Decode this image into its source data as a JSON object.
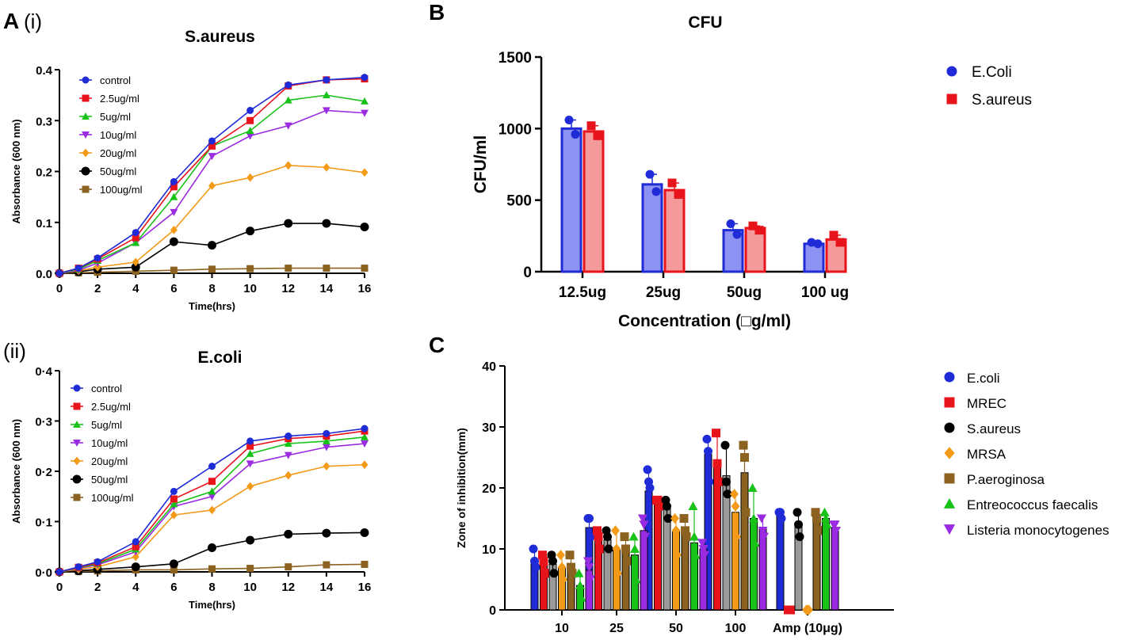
{
  "figure": {
    "panel_a": "A",
    "panel_a_i": "(i)",
    "panel_a_ii": "(ii)",
    "panel_b": "B",
    "panel_c": "C"
  },
  "chart_data": [
    {
      "type": "line",
      "id": "aureus",
      "title": "S.aureus",
      "xlabel": "Time(hrs)",
      "ylabel": "Absorbance (600 nm)",
      "xlim": [
        0,
        16
      ],
      "ylim": [
        0,
        0.4
      ],
      "xticks": [
        0,
        2,
        4,
        6,
        8,
        10,
        12,
        14,
        16
      ],
      "yticks": [
        0,
        0.1,
        0.2,
        0.3,
        0.4
      ],
      "ytick_labels": [
        "0.0",
        "0.1",
        "0.2",
        "0.3",
        "0.4"
      ],
      "x": [
        0,
        1,
        2,
        4,
        6,
        8,
        10,
        12,
        14,
        16
      ],
      "series": [
        {
          "name": "control",
          "color": "#1f2bd6",
          "marker": "circle",
          "values": [
            0.0,
            0.01,
            0.03,
            0.08,
            0.18,
            0.26,
            0.32,
            0.37,
            0.38,
            0.385
          ]
        },
        {
          "name": "2.5ug/ml",
          "color": "#e8141c",
          "marker": "square",
          "values": [
            0.0,
            0.01,
            0.028,
            0.07,
            0.17,
            0.25,
            0.3,
            0.368,
            0.38,
            0.382
          ]
        },
        {
          "name": "5ug/ml",
          "color": "#19c219",
          "marker": "triangle",
          "values": [
            0.0,
            0.008,
            0.025,
            0.06,
            0.15,
            0.25,
            0.28,
            0.34,
            0.35,
            0.338
          ]
        },
        {
          "name": "10ug/ml",
          "color": "#9a2be0",
          "marker": "triangle-down",
          "values": [
            0.0,
            0.006,
            0.02,
            0.06,
            0.12,
            0.23,
            0.27,
            0.29,
            0.32,
            0.315
          ]
        },
        {
          "name": "20ug/ml",
          "color": "#f39a19",
          "marker": "diamond",
          "values": [
            0.0,
            0.005,
            0.012,
            0.022,
            0.085,
            0.172,
            0.188,
            0.212,
            0.208,
            0.198
          ]
        },
        {
          "name": "50ug/ml",
          "color": "#000000",
          "marker": "circle",
          "values": [
            0.0,
            0.003,
            0.008,
            0.012,
            0.062,
            0.055,
            0.083,
            0.098,
            0.098,
            0.091
          ]
        },
        {
          "name": "100ug/ml",
          "color": "#8b6220",
          "marker": "square",
          "values": [
            0.0,
            0.001,
            0.002,
            0.004,
            0.006,
            0.008,
            0.009,
            0.01,
            0.01,
            0.01
          ]
        }
      ]
    },
    {
      "type": "line",
      "id": "ecoli",
      "title": "E.coli",
      "xlabel": "Time(hrs)",
      "ylabel": "Absorbance (600 nm)",
      "xlim": [
        0,
        16
      ],
      "ylim": [
        0,
        0.4
      ],
      "xticks": [
        0,
        2,
        4,
        6,
        8,
        10,
        12,
        14,
        16
      ],
      "yticks": [
        0,
        0.1,
        0.2,
        0.3,
        0.4
      ],
      "ytick_labels": [
        "0·0",
        "0·1",
        "0·2",
        "0·3",
        "0·4"
      ],
      "x": [
        0,
        1,
        2,
        4,
        6,
        8,
        10,
        12,
        14,
        16
      ],
      "series": [
        {
          "name": "control",
          "color": "#1f2bd6",
          "marker": "circle",
          "values": [
            0.0,
            0.01,
            0.02,
            0.06,
            0.16,
            0.21,
            0.26,
            0.27,
            0.275,
            0.285
          ]
        },
        {
          "name": "2.5ug/ml",
          "color": "#e8141c",
          "marker": "square",
          "values": [
            0.0,
            0.009,
            0.018,
            0.05,
            0.145,
            0.18,
            0.25,
            0.265,
            0.27,
            0.28
          ]
        },
        {
          "name": "5ug/ml",
          "color": "#19c219",
          "marker": "triangle",
          "values": [
            0.0,
            0.008,
            0.016,
            0.045,
            0.135,
            0.16,
            0.235,
            0.255,
            0.26,
            0.268
          ]
        },
        {
          "name": "10ug/ml",
          "color": "#9a2be0",
          "marker": "triangle-down",
          "values": [
            0.0,
            0.007,
            0.014,
            0.04,
            0.13,
            0.15,
            0.215,
            0.232,
            0.248,
            0.255
          ]
        },
        {
          "name": "20ug/ml",
          "color": "#f39a19",
          "marker": "diamond",
          "values": [
            0.0,
            0.005,
            0.01,
            0.03,
            0.113,
            0.123,
            0.17,
            0.192,
            0.21,
            0.213
          ]
        },
        {
          "name": "50ug/ml",
          "color": "#000000",
          "marker": "circle",
          "values": [
            0.0,
            0.002,
            0.005,
            0.01,
            0.016,
            0.048,
            0.063,
            0.075,
            0.077,
            0.078
          ]
        },
        {
          "name": "100ug/ml",
          "color": "#8b6220",
          "marker": "square",
          "values": [
            0.0,
            0.001,
            0.002,
            0.004,
            0.004,
            0.006,
            0.007,
            0.01,
            0.014,
            0.015
          ]
        }
      ]
    },
    {
      "type": "bar",
      "id": "cfu",
      "title": "CFU",
      "xlabel": "Concentration (□g/ml)",
      "ylabel": "CFU/ml",
      "ylim": [
        0,
        1500
      ],
      "yticks": [
        0,
        500,
        1000,
        1500
      ],
      "categories": [
        "12.5ug",
        "25ug",
        "50ug",
        "100 ug"
      ],
      "series": [
        {
          "name": "E.Coli",
          "color": "#1f2bd6",
          "fill": "#8c92f2",
          "marker": "circle",
          "values": [
            1000,
            610,
            290,
            195
          ],
          "points": [
            [
              1060,
              960
            ],
            [
              680,
              560
            ],
            [
              335,
              260
            ],
            [
              205,
              195
            ]
          ]
        },
        {
          "name": "S.aureus",
          "color": "#e8141c",
          "fill": "#f49a9a",
          "marker": "square",
          "values": [
            980,
            570,
            305,
            225
          ],
          "points": [
            [
              1020,
              950
            ],
            [
              620,
              540
            ],
            [
              320,
              290
            ],
            [
              255,
              205
            ]
          ]
        }
      ]
    },
    {
      "type": "bar",
      "id": "zone",
      "xlabel": "",
      "ylabel": "Zone of inhibition(mm)",
      "ylim": [
        0,
        40
      ],
      "yticks": [
        0,
        10,
        20,
        30,
        40
      ],
      "categories": [
        "10",
        "25",
        "50",
        "100",
        "Amp (10μg)"
      ],
      "series": [
        {
          "name": "E.coli",
          "color": "#1f2bd6",
          "marker": "circle",
          "values": [
            8,
            13.5,
            19.5,
            25.5,
            15.5
          ],
          "points": [
            [
              10,
              8,
              7
            ],
            [
              15,
              15,
              12
            ],
            [
              23,
              21,
              20
            ],
            [
              28,
              26,
              21
            ],
            [
              16,
              16,
              15
            ]
          ]
        },
        {
          "name": "MREC",
          "color": "#e8141c",
          "marker": "square",
          "values": [
            7.5,
            12,
            18,
            24.5,
            0
          ],
          "points": [
            [
              9,
              8,
              6
            ],
            [
              13,
              12,
              10
            ],
            [
              18,
              18,
              17
            ],
            [
              29,
              24,
              21
            ],
            [
              0,
              0,
              0
            ]
          ]
        },
        {
          "name": "S.aureus",
          "color": "#000000",
          "marker": "circle",
          "values": [
            7.5,
            11.5,
            17,
            22,
            14
          ],
          "points": [
            [
              9,
              8,
              6
            ],
            [
              13,
              12,
              10
            ],
            [
              18,
              17,
              15
            ],
            [
              27,
              21,
              19
            ],
            [
              16,
              14,
              12
            ]
          ]
        },
        {
          "name": "MRSA",
          "color": "#f39a19",
          "marker": "diamond",
          "values": [
            7,
            10,
            13,
            16,
            0
          ],
          "points": [
            [
              9,
              7,
              5
            ],
            [
              13,
              10,
              6
            ],
            [
              15,
              13,
              9
            ],
            [
              19,
              17,
              12
            ],
            [
              0,
              0,
              0
            ]
          ]
        },
        {
          "name": "P.aeroginosa",
          "color": "#8b6220",
          "marker": "square",
          "values": [
            7,
            10,
            13.5,
            22.5,
            14.5
          ],
          "points": [
            [
              9,
              7,
              6
            ],
            [
              12,
              10,
              8
            ],
            [
              15,
              13,
              12
            ],
            [
              27,
              25,
              16
            ],
            [
              16,
              15,
              13
            ]
          ]
        },
        {
          "name": "Entreococcus faecalis",
          "color": "#19c219",
          "marker": "triangle",
          "values": [
            4,
            9,
            11,
            15,
            15
          ],
          "points": [
            [
              6,
              4,
              2
            ],
            [
              12,
              10,
              5
            ],
            [
              17,
              12,
              9
            ],
            [
              20,
              15,
              11
            ],
            [
              16,
              15,
              14
            ]
          ]
        },
        {
          "name": "Listeria monocytogenes",
          "color": "#9a2be0",
          "marker": "triangle-down",
          "values": [
            6.5,
            13,
            10,
            13.5,
            13.5
          ],
          "points": [
            [
              8,
              7,
              5
            ],
            [
              15,
              14,
              12
            ],
            [
              11,
              10,
              9
            ],
            [
              15,
              13,
              12
            ],
            [
              14,
              14,
              13
            ]
          ]
        }
      ]
    }
  ]
}
